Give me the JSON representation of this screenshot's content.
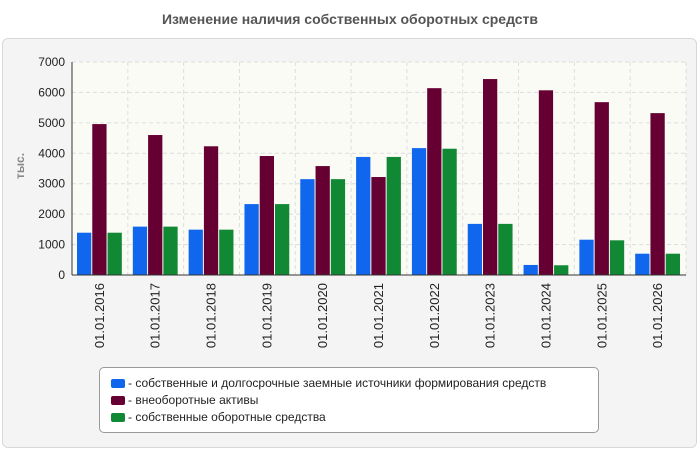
{
  "chart_data": {
    "type": "bar",
    "title": "Изменение наличия собственных оборотных средств",
    "ylabel": "тыс.",
    "xlabel": "",
    "ylim": [
      0,
      7000
    ],
    "yticks": [
      "0",
      "1000",
      "2000",
      "3000",
      "4000",
      "5000",
      "6000",
      "7000"
    ],
    "grid": true,
    "legend_position": "bottom",
    "categories": [
      "01.01.2016",
      "01.01.2017",
      "01.01.2018",
      "01.01.2019",
      "01.01.2020",
      "01.01.2021",
      "01.01.2022",
      "01.01.2023",
      "01.01.2024",
      "01.01.2025",
      "01.01.2026"
    ],
    "series": [
      {
        "name": "- собственные и долгосрочные заемные источники формирования средств",
        "color": "#1166ee",
        "values": [
          1390,
          1590,
          1490,
          2330,
          3150,
          3880,
          4170,
          1680,
          330,
          1160,
          700
        ]
      },
      {
        "name": "- внеоборотные активы",
        "color": "#660033",
        "values": [
          4960,
          4600,
          4230,
          3910,
          3580,
          3220,
          6140,
          6440,
          6070,
          5680,
          5320
        ]
      },
      {
        "name": "- собственные оборотные средства",
        "color": "#118833",
        "values": [
          1390,
          1590,
          1490,
          2330,
          3150,
          3880,
          4150,
          1680,
          320,
          1140,
          700
        ]
      }
    ]
  }
}
